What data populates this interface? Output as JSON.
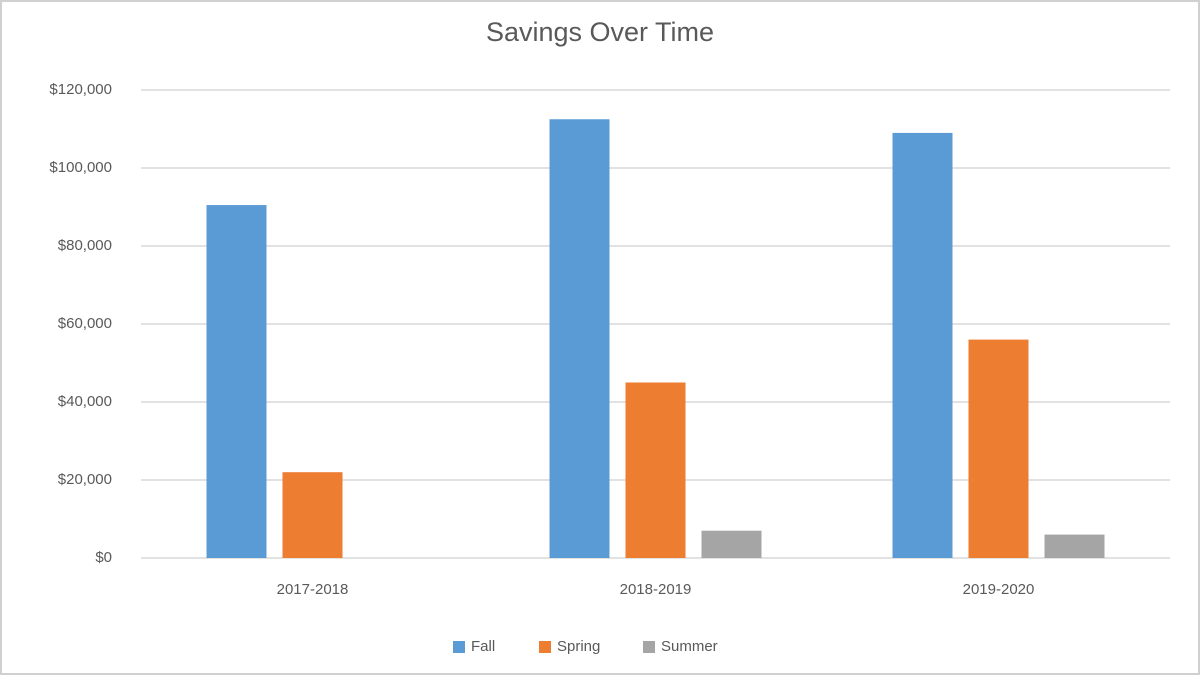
{
  "chart_data": {
    "type": "bar",
    "title": "Savings Over Time",
    "categories": [
      "2017-2018",
      "2018-2019",
      "2019-2020"
    ],
    "series": [
      {
        "name": "Fall",
        "color": "#5b9bd5",
        "values": [
          90500,
          112500,
          109000
        ]
      },
      {
        "name": "Spring",
        "color": "#ed7d31",
        "values": [
          22000,
          45000,
          56000
        ]
      },
      {
        "name": "Summer",
        "color": "#a5a5a5",
        "values": [
          null,
          7000,
          6000
        ]
      }
    ],
    "ylim": [
      0,
      120000
    ],
    "yticks": [
      {
        "value": 0,
        "label": "$0"
      },
      {
        "value": 20000,
        "label": "$20,000"
      },
      {
        "value": 40000,
        "label": "$40,000"
      },
      {
        "value": 60000,
        "label": "$60,000"
      },
      {
        "value": 80000,
        "label": "$80,000"
      },
      {
        "value": 100000,
        "label": "$100,000"
      },
      {
        "value": 120000,
        "label": "$120,000"
      }
    ],
    "grid": true,
    "legend": "bottom"
  }
}
